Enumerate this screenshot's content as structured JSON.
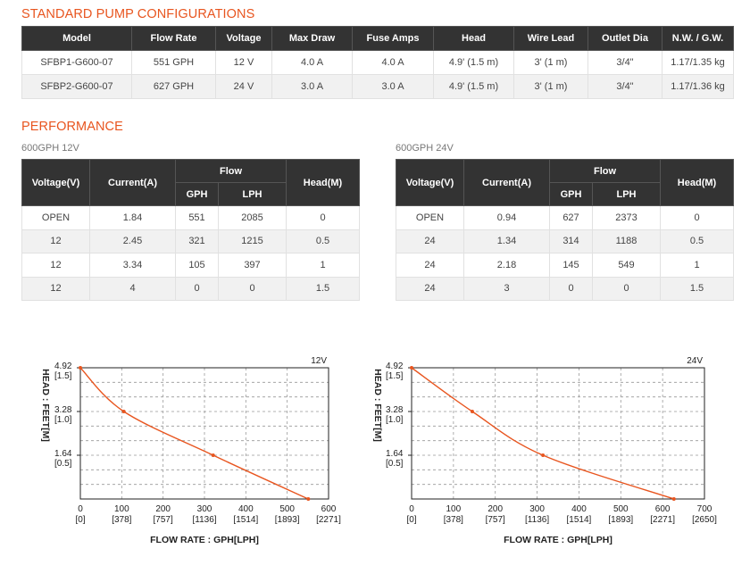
{
  "config": {
    "title": "STANDARD PUMP CONFIGURATIONS",
    "headers": [
      "Model",
      "Flow Rate",
      "Voltage",
      "Max Draw",
      "Fuse Amps",
      "Head",
      "Wire Lead",
      "Outlet Dia",
      "N.W. / G.W."
    ],
    "rows": [
      [
        "SFBP1-G600-07",
        "551 GPH",
        "12 V",
        "4.0 A",
        "4.0 A",
        "4.9' (1.5 m)",
        "3' (1 m)",
        "3/4\"",
        "1.17/1.35 kg"
      ],
      [
        "SFBP2-G600-07",
        "627 GPH",
        "24 V",
        "3.0 A",
        "3.0 A",
        "4.9' (1.5 m)",
        "3' (1 m)",
        "3/4\"",
        "1.17/1.36 kg"
      ]
    ]
  },
  "performance": {
    "title": "PERFORMANCE",
    "headers": {
      "voltage": "Voltage(V)",
      "current": "Current(A)",
      "flow": "Flow",
      "gph": "GPH",
      "lph": "LPH",
      "head": "Head(M)"
    },
    "tables": [
      {
        "subtitle": "600GPH 12V",
        "rows": [
          [
            "OPEN",
            "1.84",
            "551",
            "2085",
            "0"
          ],
          [
            "12",
            "2.45",
            "321",
            "1215",
            "0.5"
          ],
          [
            "12",
            "3.34",
            "105",
            "397",
            "1"
          ],
          [
            "12",
            "4",
            "0",
            "0",
            "1.5"
          ]
        ]
      },
      {
        "subtitle": "600GPH 24V",
        "rows": [
          [
            "OPEN",
            "0.94",
            "627",
            "2373",
            "0"
          ],
          [
            "24",
            "1.34",
            "314",
            "1188",
            "0.5"
          ],
          [
            "24",
            "2.18",
            "145",
            "549",
            "1"
          ],
          [
            "24",
            "3",
            "0",
            "0",
            "1.5"
          ]
        ]
      }
    ]
  },
  "chart_data": [
    {
      "type": "line",
      "title": "12V",
      "xlabel": "FLOW RATE : GPH[LPH]",
      "ylabel": "HEAD : FEET[M]",
      "xlim": [
        0,
        600
      ],
      "ylim": [
        0,
        4.92
      ],
      "x_ticks": [
        "0",
        "100",
        "200",
        "300",
        "400",
        "500",
        "600"
      ],
      "x_ticks_sub": [
        "[0]",
        "[378]",
        "[757]",
        "[1136]",
        "[1514]",
        "[1893]",
        "[2271]"
      ],
      "y_ticks": [
        {
          "value": 4.92,
          "label": "4.92",
          "sub": "[1.5]"
        },
        {
          "value": 3.28,
          "label": "3.28",
          "sub": "[1.0]"
        },
        {
          "value": 1.64,
          "label": "1.64",
          "sub": "[0.5]"
        }
      ],
      "grid": true,
      "line_color": "#e8551f",
      "series": [
        {
          "x": [
            0,
            105,
            321,
            551
          ],
          "y": [
            4.92,
            3.28,
            1.64,
            0
          ]
        }
      ]
    },
    {
      "type": "line",
      "title": "24V",
      "xlabel": "FLOW RATE : GPH[LPH]",
      "ylabel": "HEAD : FEET[M]",
      "xlim": [
        0,
        700
      ],
      "ylim": [
        0,
        4.92
      ],
      "x_ticks": [
        "0",
        "100",
        "200",
        "300",
        "400",
        "500",
        "600",
        "700"
      ],
      "x_ticks_sub": [
        "[0]",
        "[378]",
        "[757]",
        "[1136]",
        "[1514]",
        "[1893]",
        "[2271]",
        "[2650]"
      ],
      "y_ticks": [
        {
          "value": 4.92,
          "label": "4.92",
          "sub": "[1.5]"
        },
        {
          "value": 3.28,
          "label": "3.28",
          "sub": "[1.0]"
        },
        {
          "value": 1.64,
          "label": "1.64",
          "sub": "[0.5]"
        }
      ],
      "grid": true,
      "line_color": "#e8551f",
      "series": [
        {
          "x": [
            0,
            145,
            314,
            627
          ],
          "y": [
            4.92,
            3.28,
            1.64,
            0
          ]
        }
      ]
    }
  ]
}
